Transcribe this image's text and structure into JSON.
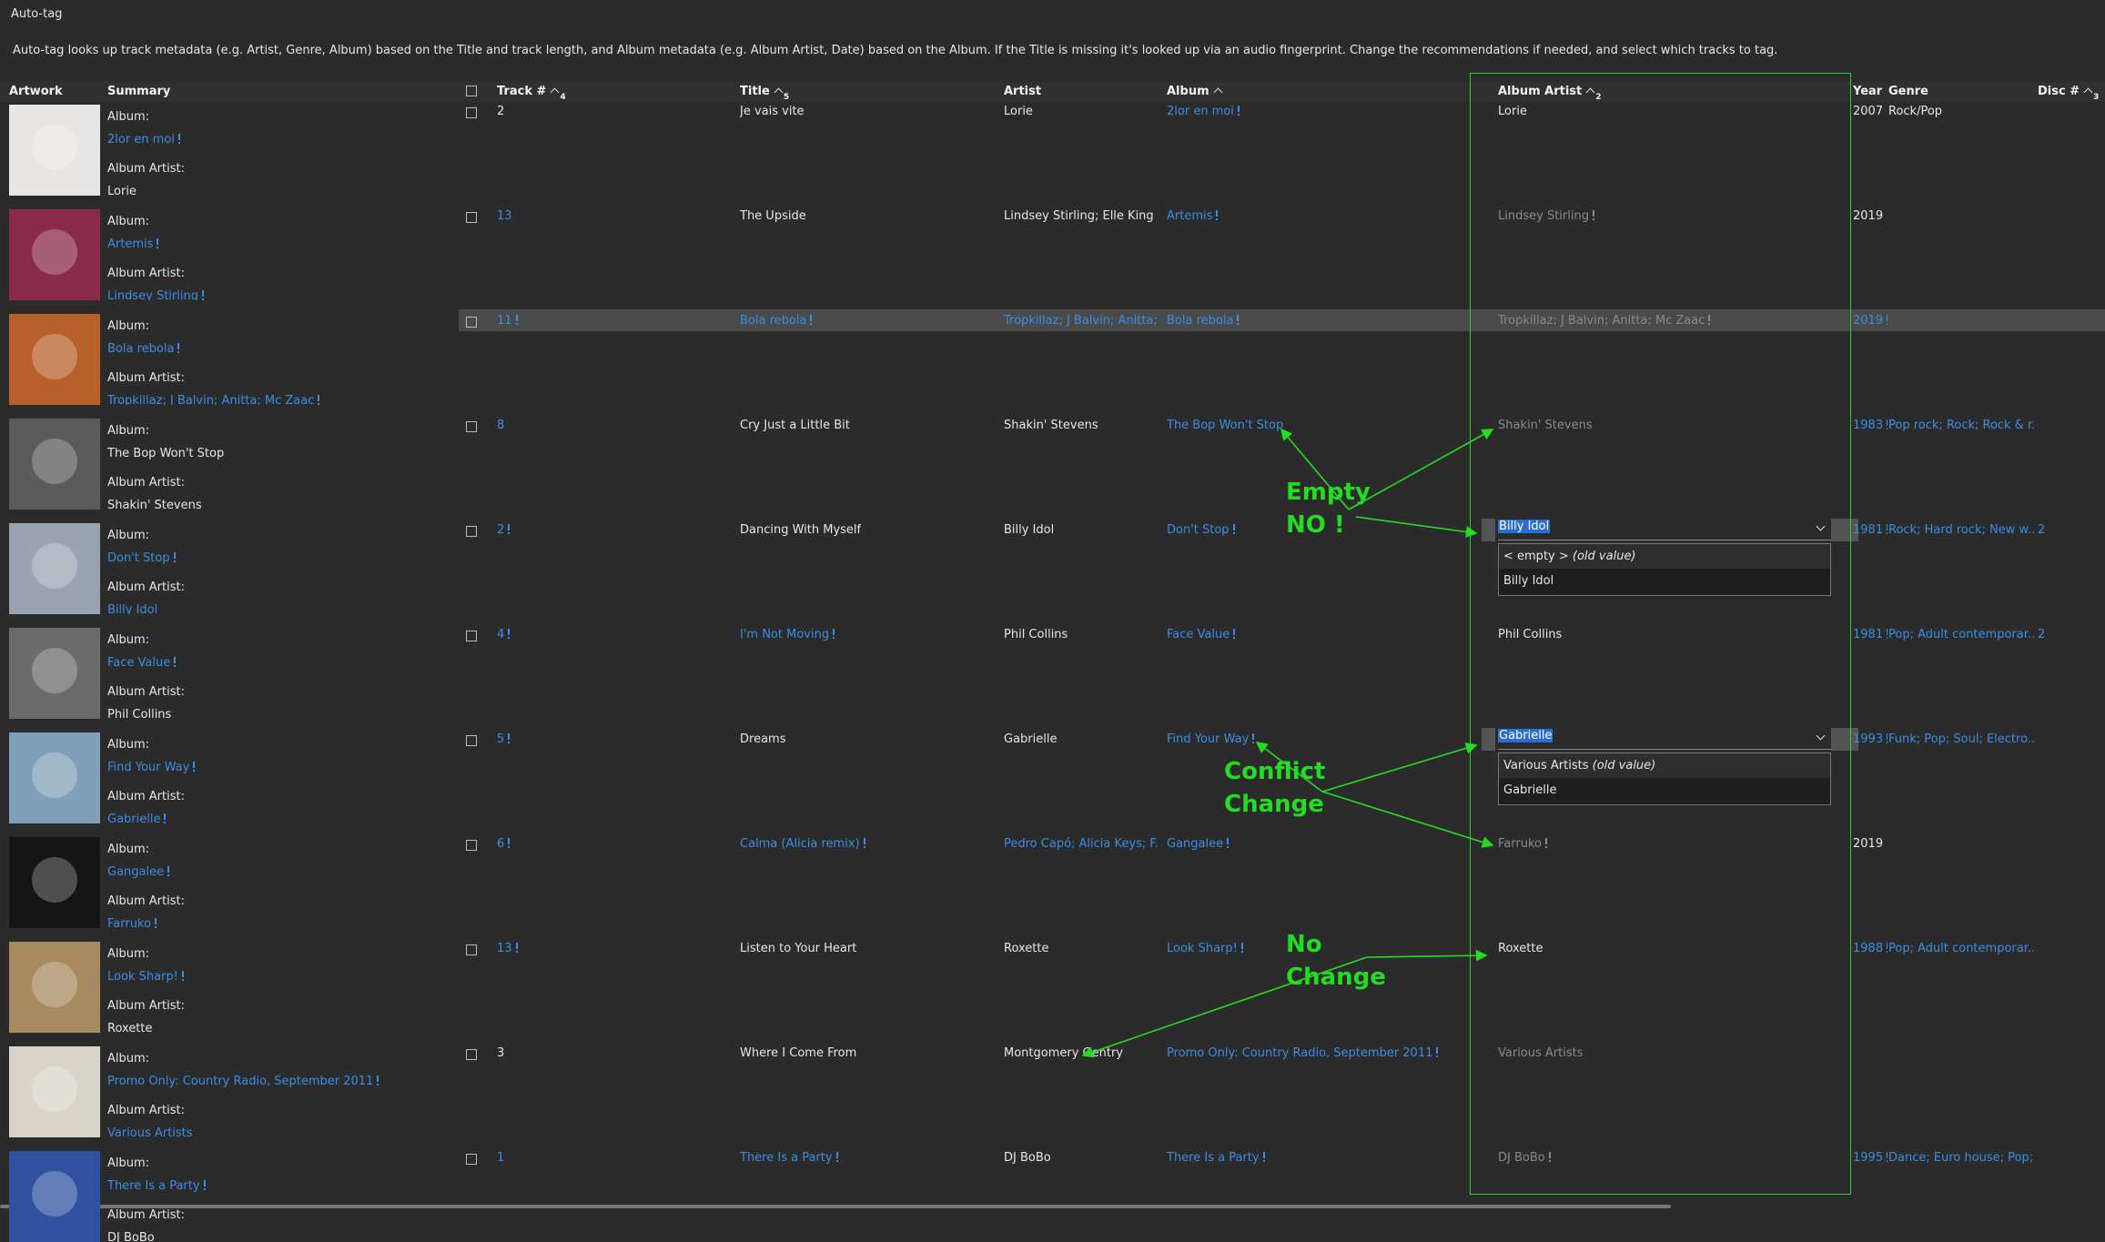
{
  "window_title": "Auto-tag",
  "description": "Auto-tag looks up track metadata (e.g. Artist, Genre, Album) based on the Title and track length, and Album metadata (e.g. Album Artist, Date) based on the Album. If the Title is missing it's looked up via an audio fingerprint. Change the recommendations if needed, and select which tracks to tag.",
  "columns": [
    {
      "key": "artwork",
      "label": "Artwork"
    },
    {
      "key": "summary",
      "label": "Summary"
    },
    {
      "key": "track",
      "label": "Track #",
      "sorted": true,
      "sort_order": 4
    },
    {
      "key": "title",
      "label": "Title",
      "sorted": true,
      "sort_order": 5
    },
    {
      "key": "artist",
      "label": "Artist"
    },
    {
      "key": "album",
      "label": "Album",
      "sorted": true
    },
    {
      "key": "album_artist",
      "label": "Album Artist",
      "sorted": true,
      "sort_order": 2
    },
    {
      "key": "year",
      "label": "Year"
    },
    {
      "key": "genre",
      "label": "Genre"
    },
    {
      "key": "disc",
      "label": "Disc #",
      "sorted": true,
      "sort_order": 3
    }
  ],
  "summary_labels": {
    "album": "Album:",
    "album_artist": "Album Artist:"
  },
  "rows": [
    {
      "artwork_color": "#e8e6e4",
      "summary_album": "2lor en moi",
      "summary_album_artist": "Lorie",
      "track": "2",
      "title": "Je vais vite",
      "artist": "Lorie",
      "album": "2lor en moi",
      "album_artist": "Lorie",
      "year": "2007",
      "genre": "Rock/Pop",
      "styles": {
        "summary_album": "changed",
        "album": "changed"
      }
    },
    {
      "artwork_color": "#8a2a4a",
      "summary_album": "Artemis",
      "summary_album_artist": "Lindsey Stirling",
      "track": "13",
      "title": "The Upside",
      "artist": "Lindsey Stirling; Elle King",
      "album": "Artemis",
      "album_artist": "Lindsey Stirling",
      "year": "2019",
      "styles": {
        "summary_album": "changed",
        "summary_album_artist": "changed",
        "track": "new",
        "album": "changed",
        "album_artist": "dim-changed"
      }
    },
    {
      "artwork_color": "#b8602a",
      "selected": true,
      "summary_album": "Bola rebola",
      "summary_album_artist": "Tropkillaz; J Balvin; Anitta; Mc Zaac",
      "track": "11",
      "title": "Bola rebola",
      "artist": "Tropkillaz; J Balvin; Anitta; ...",
      "album": "Bola rebola",
      "album_artist": "Tropkillaz; J Balvin; Anitta; Mc Zaac",
      "year": "2019",
      "styles": {
        "summary_album": "changed",
        "summary_album_artist": "changed",
        "track": "changed",
        "title": "changed",
        "artist": "new",
        "album": "changed",
        "album_artist": "dim-changed",
        "year": "changed"
      }
    },
    {
      "artwork_color": "#5a5a5a",
      "summary_album": "The Bop Won't Stop",
      "summary_album_artist": "Shakin' Stevens",
      "track": "8",
      "title": "Cry Just a Little Bit",
      "artist": "Shakin' Stevens",
      "album": "The Bop Won't Stop",
      "album_artist": "Shakin' Stevens",
      "year": "1983",
      "genre": "Pop rock; Rock; Rock & r...",
      "styles": {
        "track": "new",
        "album": "new",
        "album_artist": "dim",
        "year": "changed",
        "genre": "new"
      }
    },
    {
      "artwork_color": "#9aa4b0",
      "summary_album": "Don't Stop",
      "summary_album_artist": "Billy Idol",
      "track": "2",
      "title": "Dancing With Myself",
      "artist": "Billy Idol",
      "album": "Don't Stop",
      "album_artist": "Billy Idol",
      "year": "1981",
      "genre": "Rock; Hard rock; New w...",
      "disc": "2",
      "album_artist_options": [
        {
          "text": "< empty >",
          "note": "(old value)"
        },
        {
          "text": "Billy Idol"
        }
      ],
      "styles": {
        "summary_album": "changed",
        "summary_album_artist": "new",
        "track": "changed",
        "album": "changed",
        "year": "changed",
        "genre": "new",
        "disc": "new"
      }
    },
    {
      "artwork_color": "#6b6b6b",
      "summary_album": "Face Value",
      "summary_album_artist": "Phil Collins",
      "track": "4",
      "title": "I'm Not Moving",
      "artist": "Phil Collins",
      "album": "Face Value",
      "album_artist": "Phil Collins",
      "year": "1981",
      "genre": "Pop; Adult contemporar...",
      "disc": "2",
      "styles": {
        "summary_album": "changed",
        "track": "changed",
        "title": "changed",
        "album": "changed",
        "year": "changed",
        "genre": "new",
        "disc": "new"
      }
    },
    {
      "artwork_color": "#7fa0b8",
      "summary_album": "Find Your Way",
      "summary_album_artist": "Gabrielle",
      "track": "5",
      "title": "Dreams",
      "artist": "Gabrielle",
      "album": "Find Your Way",
      "album_artist": "Gabrielle",
      "year": "1993",
      "genre": "Funk; Pop; Soul; Electro...",
      "album_artist_options": [
        {
          "text": "Various Artists",
          "note": "(old value)"
        },
        {
          "text": "Gabrielle"
        }
      ],
      "styles": {
        "summary_album": "changed",
        "summary_album_artist": "changed",
        "track": "changed",
        "album": "changed",
        "year": "changed",
        "genre": "new"
      }
    },
    {
      "artwork_color": "#151515",
      "summary_album": "Gangalee",
      "summary_album_artist": "Farruko",
      "track": "6",
      "title": "Calma (Alicia remix)",
      "artist": "Pedro Capó; Alicia Keys; F...",
      "album": "Gangalee",
      "album_artist": "Farruko",
      "year": "2019",
      "styles": {
        "summary_album": "changed",
        "summary_album_artist": "changed",
        "track": "changed",
        "title": "changed",
        "artist": "new",
        "album": "changed",
        "album_artist": "dim-changed"
      }
    },
    {
      "artwork_color": "#a88a60",
      "summary_album": "Look Sharp!",
      "summary_album_artist": "Roxette",
      "track": "13",
      "title": "Listen to Your Heart",
      "artist": "Roxette",
      "album": "Look Sharp!",
      "album_artist": "Roxette",
      "year": "1988",
      "genre": "Pop; Adult contemporar...",
      "styles": {
        "summary_album": "changed",
        "track": "changed",
        "album": "changed",
        "year": "changed",
        "genre": "new"
      }
    },
    {
      "artwork_color": "#d8d4c8",
      "summary_album": "Promo Only: Country Radio, September 2011",
      "summary_album_artist": "Various Artists",
      "track": "3",
      "title": "Where I Come From",
      "artist": "Montgomery Gentry",
      "album": "Promo Only: Country Radio, September 2011",
      "album_artist": "Various Artists",
      "styles": {
        "summary_album": "changed",
        "summary_album_artist": "new",
        "album": "changed",
        "album_artist": "dim"
      }
    },
    {
      "artwork_color": "#3050a0",
      "summary_album": "There Is a Party",
      "summary_album_artist": "DJ BoBo",
      "track": "1",
      "title": "There Is a Party",
      "artist": "DJ BoBo",
      "album": "There Is a Party",
      "album_artist": "DJ BoBo",
      "year": "1995",
      "genre": "Dance; Euro house; Pop;...",
      "styles": {
        "summary_album": "changed",
        "track": "new",
        "title": "changed",
        "album": "changed",
        "album_artist": "dim-changed",
        "year": "changed",
        "genre": "new"
      }
    }
  ],
  "annotations": [
    {
      "lines": [
        "Empty",
        "NO !"
      ]
    },
    {
      "lines": [
        "Conflict",
        "Change"
      ]
    },
    {
      "lines": [
        "No",
        "Change"
      ]
    }
  ]
}
